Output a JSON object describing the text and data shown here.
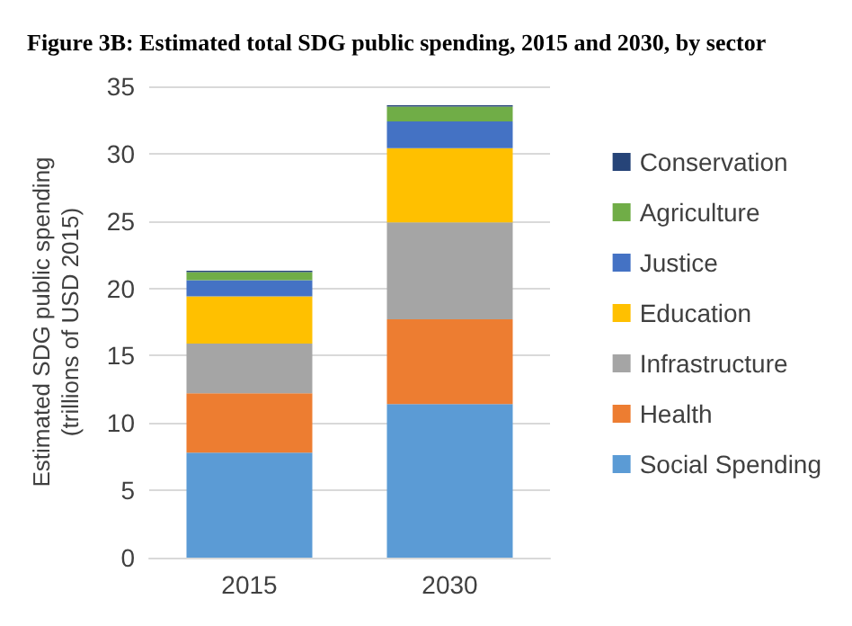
{
  "chart_data": {
    "type": "bar",
    "stacked": true,
    "title": "Figure 3B: Estimated total SDG public spending, 2015 and 2030, by sector",
    "ylabel": "Estimated SDG public spending\n(trillions of USD 2015)",
    "categories": [
      "2015",
      "2030"
    ],
    "series": [
      {
        "name": "Social Spending",
        "color": "#5b9bd5",
        "values": [
          7.8,
          11.4
        ]
      },
      {
        "name": "Health",
        "color": "#ed7d31",
        "values": [
          4.4,
          6.3
        ]
      },
      {
        "name": "Infrastructure",
        "color": "#a5a5a5",
        "values": [
          3.7,
          7.2
        ]
      },
      {
        "name": "Education",
        "color": "#ffc000",
        "values": [
          3.5,
          5.5
        ]
      },
      {
        "name": "Justice",
        "color": "#4472c4",
        "values": [
          1.2,
          2.0
        ]
      },
      {
        "name": "Agriculture",
        "color": "#70ad47",
        "values": [
          0.6,
          1.1
        ]
      },
      {
        "name": "Conservation",
        "color": "#264478",
        "values": [
          0.1,
          0.1
        ]
      }
    ],
    "ylim": [
      0,
      35
    ],
    "yticks": [
      0,
      5,
      10,
      15,
      20,
      25,
      30,
      35
    ],
    "grid": "y",
    "legend": "right"
  }
}
